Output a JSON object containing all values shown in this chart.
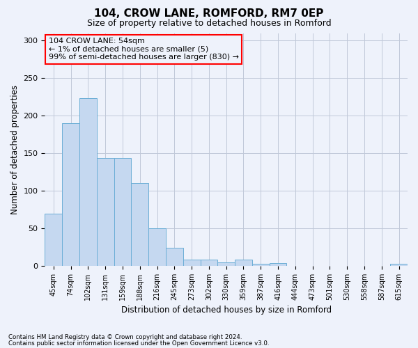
{
  "title1": "104, CROW LANE, ROMFORD, RM7 0EP",
  "title2": "Size of property relative to detached houses in Romford",
  "xlabel": "Distribution of detached houses by size in Romford",
  "ylabel": "Number of detached properties",
  "bar_labels": [
    "45sqm",
    "74sqm",
    "102sqm",
    "131sqm",
    "159sqm",
    "188sqm",
    "216sqm",
    "245sqm",
    "273sqm",
    "302sqm",
    "330sqm",
    "359sqm",
    "387sqm",
    "416sqm",
    "444sqm",
    "473sqm",
    "501sqm",
    "530sqm",
    "558sqm",
    "587sqm",
    "615sqm"
  ],
  "bar_values": [
    70,
    190,
    223,
    144,
    144,
    110,
    50,
    24,
    8,
    8,
    5,
    8,
    3,
    4,
    0,
    0,
    0,
    0,
    0,
    0,
    3
  ],
  "bar_color": "#c5d8f0",
  "bar_edge_color": "#6baed6",
  "ylim": [
    0,
    310
  ],
  "yticks": [
    0,
    50,
    100,
    150,
    200,
    250,
    300
  ],
  "annotation_title": "104 CROW LANE: 54sqm",
  "annotation_line1": "← 1% of detached houses are smaller (5)",
  "annotation_line2": "99% of semi-detached houses are larger (830) →",
  "footer1": "Contains HM Land Registry data © Crown copyright and database right 2024.",
  "footer2": "Contains public sector information licensed under the Open Government Licence v3.0.",
  "property_bin_index": 0,
  "background_color": "#eef2fb",
  "grid_color": "#c0c8d8"
}
